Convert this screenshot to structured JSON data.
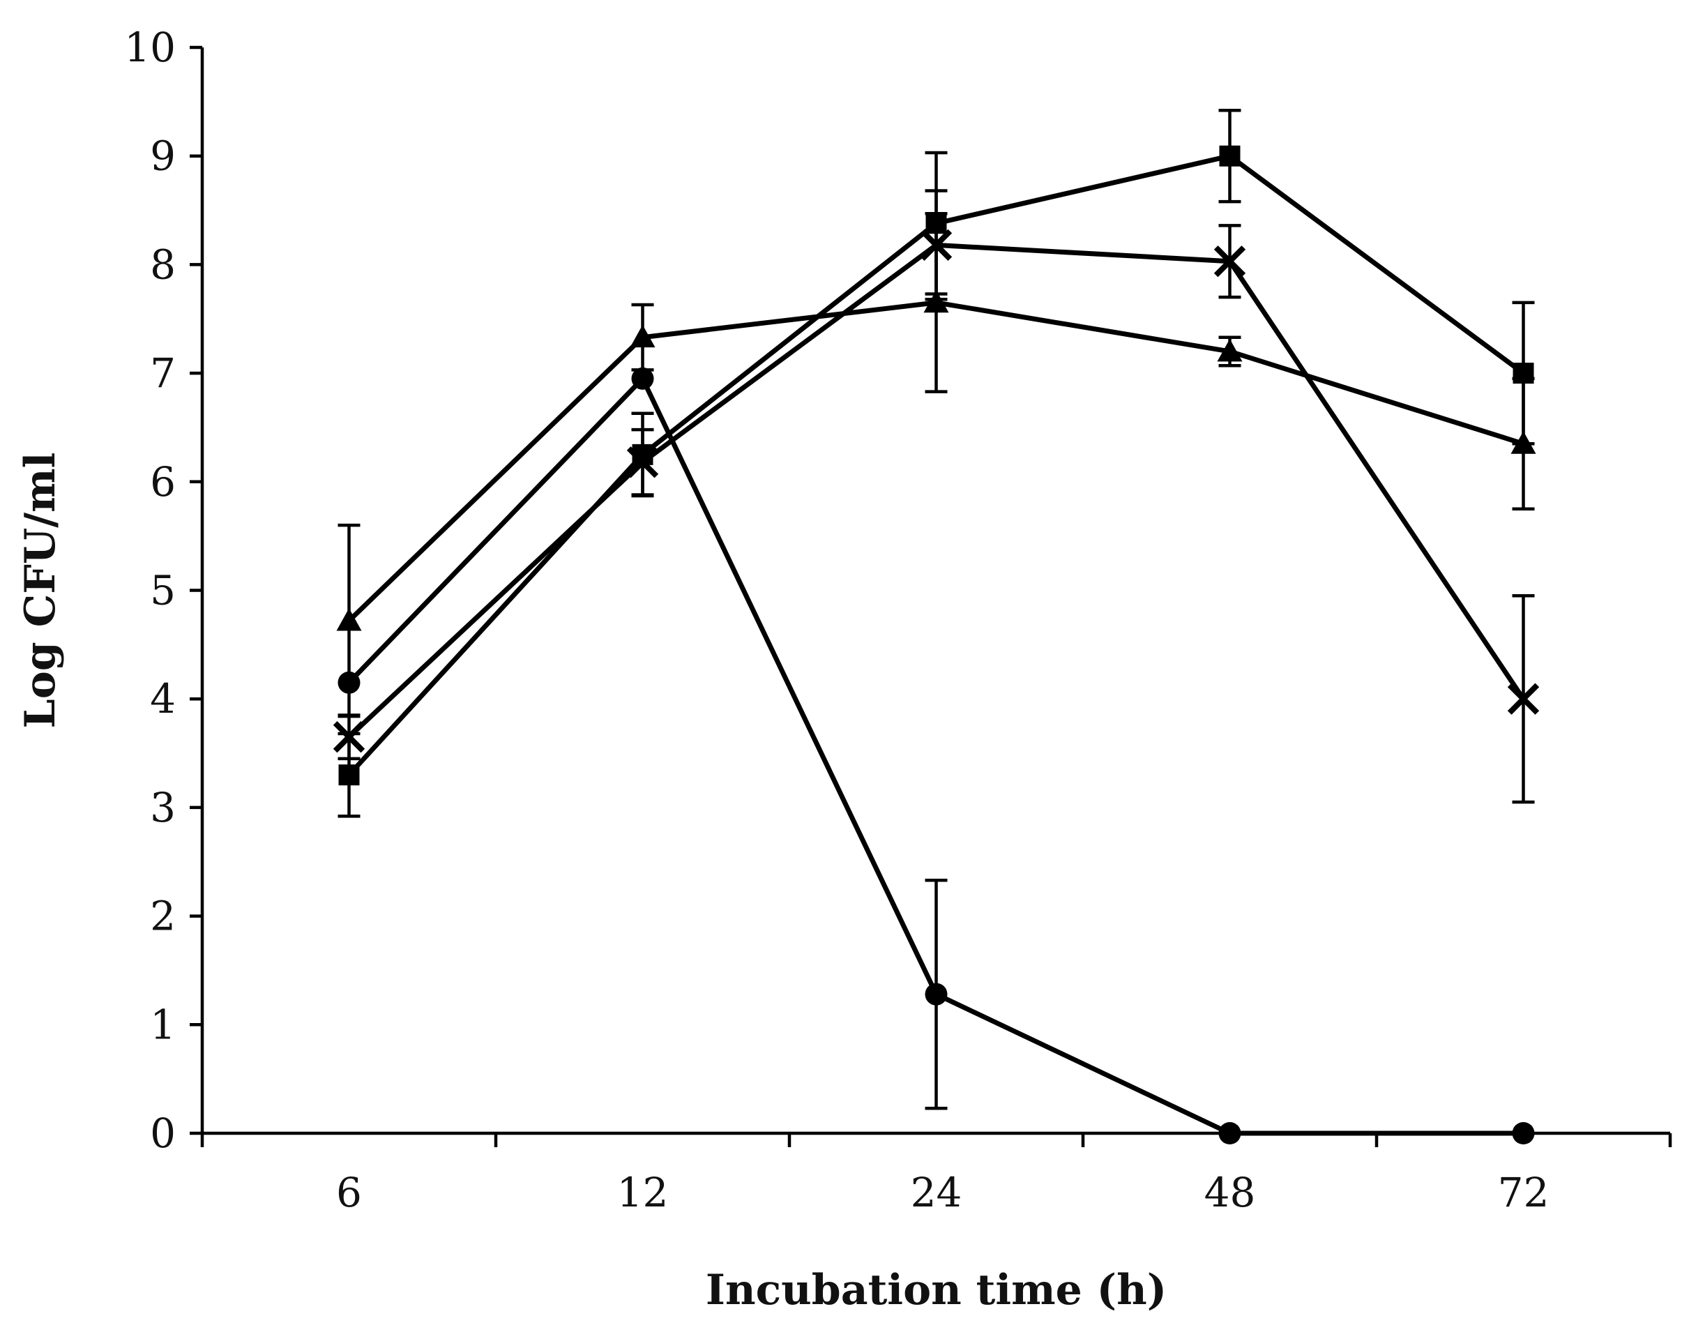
{
  "chart_data": {
    "type": "line",
    "title": "",
    "xlabel": "Incubation time (h)",
    "ylabel": "Log CFU/ml",
    "categories": [
      "6",
      "12",
      "24",
      "48",
      "72"
    ],
    "ylim": [
      0,
      10
    ],
    "yticks": [
      "0",
      "1",
      "2",
      "3",
      "4",
      "5",
      "6",
      "7",
      "8",
      "9",
      "10"
    ],
    "grid": false,
    "legend": "none",
    "series": [
      {
        "name": "square",
        "marker": "square",
        "values": [
          3.3,
          6.25,
          8.38,
          9.0,
          7.0
        ],
        "errors": [
          0.38,
          0.38,
          0.65,
          0.42,
          0.65
        ]
      },
      {
        "name": "cross",
        "marker": "x",
        "values": [
          3.65,
          6.18,
          8.18,
          8.03,
          4.0
        ],
        "errors": [
          0.2,
          0.3,
          0.5,
          0.33,
          0.95
        ]
      },
      {
        "name": "triangle",
        "marker": "triangle",
        "values": [
          4.72,
          7.33,
          7.65,
          7.2,
          6.35
        ],
        "errors": [
          0.88,
          0.3,
          0.82,
          0.13,
          0.6
        ]
      },
      {
        "name": "circle",
        "marker": "circle",
        "values": [
          4.15,
          6.95,
          1.28,
          0.0,
          0.0
        ],
        "errors": [
          0.0,
          0.0,
          1.05,
          0.0,
          0.0
        ]
      }
    ]
  }
}
